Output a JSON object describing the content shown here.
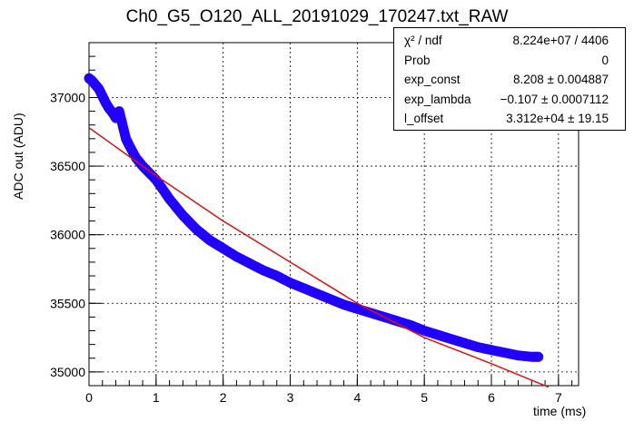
{
  "chart_data": {
    "type": "scatter",
    "title": "Ch0_G5_O120_ALL_20191029_170247.txt_RAW",
    "xlabel": "time (ms)",
    "ylabel": "ADC out (ADU)",
    "xlim": [
      0,
      7.3
    ],
    "ylim": [
      34900,
      37400
    ],
    "x_ticks": [
      "0",
      "1",
      "2",
      "3",
      "4",
      "5",
      "6",
      "7"
    ],
    "y_ticks": [
      "35000",
      "35500",
      "36000",
      "36500",
      "37000"
    ],
    "grid": true,
    "legend": "top-right",
    "series": [
      {
        "kind": "points",
        "color": "#2200ff",
        "points": [
          [
            0.0,
            37140
          ],
          [
            0.05,
            37120
          ],
          [
            0.1,
            37090
          ],
          [
            0.15,
            37060
          ],
          [
            0.2,
            37010
          ],
          [
            0.25,
            36960
          ],
          [
            0.3,
            36920
          ],
          [
            0.35,
            36890
          ],
          [
            0.4,
            36850
          ],
          [
            0.45,
            36900
          ],
          [
            0.5,
            36800
          ],
          [
            0.55,
            36700
          ],
          [
            0.6,
            36650
          ],
          [
            0.7,
            36560
          ],
          [
            0.8,
            36500
          ],
          [
            0.9,
            36450
          ],
          [
            1.0,
            36400
          ],
          [
            1.1,
            36330
          ],
          [
            1.2,
            36260
          ],
          [
            1.3,
            36200
          ],
          [
            1.4,
            36140
          ],
          [
            1.5,
            36090
          ],
          [
            1.6,
            36040
          ],
          [
            1.7,
            36000
          ],
          [
            1.8,
            35960
          ],
          [
            1.9,
            35930
          ],
          [
            2.0,
            35900
          ],
          [
            2.2,
            35840
          ],
          [
            2.4,
            35790
          ],
          [
            2.6,
            35740
          ],
          [
            2.8,
            35700
          ],
          [
            3.0,
            35650
          ],
          [
            3.2,
            35610
          ],
          [
            3.4,
            35570
          ],
          [
            3.6,
            35530
          ],
          [
            3.8,
            35490
          ],
          [
            4.0,
            35460
          ],
          [
            4.2,
            35430
          ],
          [
            4.4,
            35400
          ],
          [
            4.6,
            35370
          ],
          [
            4.8,
            35340
          ],
          [
            5.0,
            35300
          ],
          [
            5.2,
            35270
          ],
          [
            5.4,
            35240
          ],
          [
            5.6,
            35210
          ],
          [
            5.8,
            35180
          ],
          [
            6.0,
            35160
          ],
          [
            6.2,
            35140
          ],
          [
            6.4,
            35120
          ],
          [
            6.6,
            35110
          ],
          [
            6.7,
            35110
          ]
        ]
      },
      {
        "kind": "fit",
        "color": "#e01010",
        "points": [
          [
            0.0,
            36780
          ],
          [
            1.0,
            36430
          ],
          [
            2.0,
            36100
          ],
          [
            3.0,
            35800
          ],
          [
            4.0,
            35500
          ],
          [
            5.0,
            35250
          ],
          [
            6.0,
            35060
          ],
          [
            6.85,
            34890
          ]
        ]
      }
    ]
  },
  "stats": {
    "rows": [
      {
        "k": "χ² / ndf",
        "v": "8.224e+07 / 4406"
      },
      {
        "k": "Prob",
        "v": "0"
      },
      {
        "k": "exp_const",
        "v": "8.208 ± 0.004887"
      },
      {
        "k": "exp_lambda",
        "v": "−0.107 ± 0.0007112"
      },
      {
        "k": "l_offset",
        "v": "3.312e+04 ± 19.15"
      }
    ]
  },
  "colors": {
    "axis": "#000000",
    "grid": "#000000"
  }
}
